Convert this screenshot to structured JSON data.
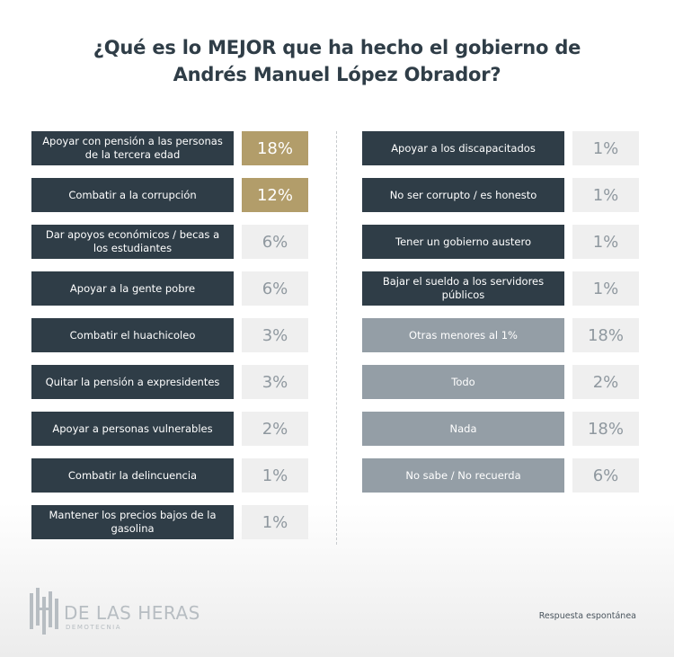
{
  "title_line1": "¿Qué es lo MEJOR que ha hecho el gobierno de",
  "title_line2": "Andrés Manuel López Obrador?",
  "chart_data": {
    "type": "table",
    "title": "¿Qué es lo MEJOR que ha hecho el gobierno de Andrés Manuel López Obrador?",
    "unit": "%",
    "left_column": [
      {
        "label": "Apoyar con pensión a las personas de la tercera edad",
        "value": "18%",
        "highlight": true
      },
      {
        "label": "Combatir a la corrupción",
        "value": "12%",
        "highlight": true
      },
      {
        "label": "Dar apoyos económicos / becas a los estudiantes",
        "value": "6%",
        "highlight": false
      },
      {
        "label": "Apoyar a la gente pobre",
        "value": "6%",
        "highlight": false
      },
      {
        "label": "Combatir el huachicoleo",
        "value": "3%",
        "highlight": false
      },
      {
        "label": "Quitar la pensión a expresidentes",
        "value": "3%",
        "highlight": false
      },
      {
        "label": "Apoyar a personas vulnerables",
        "value": "2%",
        "highlight": false
      },
      {
        "label": "Combatir la delincuencia",
        "value": "1%",
        "highlight": false
      },
      {
        "label": "Mantener los precios bajos de la gasolina",
        "value": "1%",
        "highlight": false
      }
    ],
    "right_column": [
      {
        "label": "Apoyar a los discapacitados",
        "value": "1%",
        "style": "dark"
      },
      {
        "label": "No ser corrupto / es honesto",
        "value": "1%",
        "style": "dark"
      },
      {
        "label": "Tener un gobierno austero",
        "value": "1%",
        "style": "dark"
      },
      {
        "label": "Bajar el sueldo a los servidores públicos",
        "value": "1%",
        "style": "dark"
      },
      {
        "label": "Otras menores al 1%",
        "value": "18%",
        "style": "grey"
      },
      {
        "label": "Todo",
        "value": "2%",
        "style": "grey"
      },
      {
        "label": "Nada",
        "value": "18%",
        "style": "grey"
      },
      {
        "label": "No sabe / No recuerda",
        "value": "6%",
        "style": "grey"
      }
    ]
  },
  "colors": {
    "dark_bar": "#2f3d47",
    "grey_bar": "#949ea6",
    "gold_highlight": "#b29d6a",
    "value_bg": "#efefef"
  },
  "logo": {
    "name": "DE LAS HERAS",
    "subtitle": "DEMOTECNIA"
  },
  "footnote": "Respuesta espontánea"
}
